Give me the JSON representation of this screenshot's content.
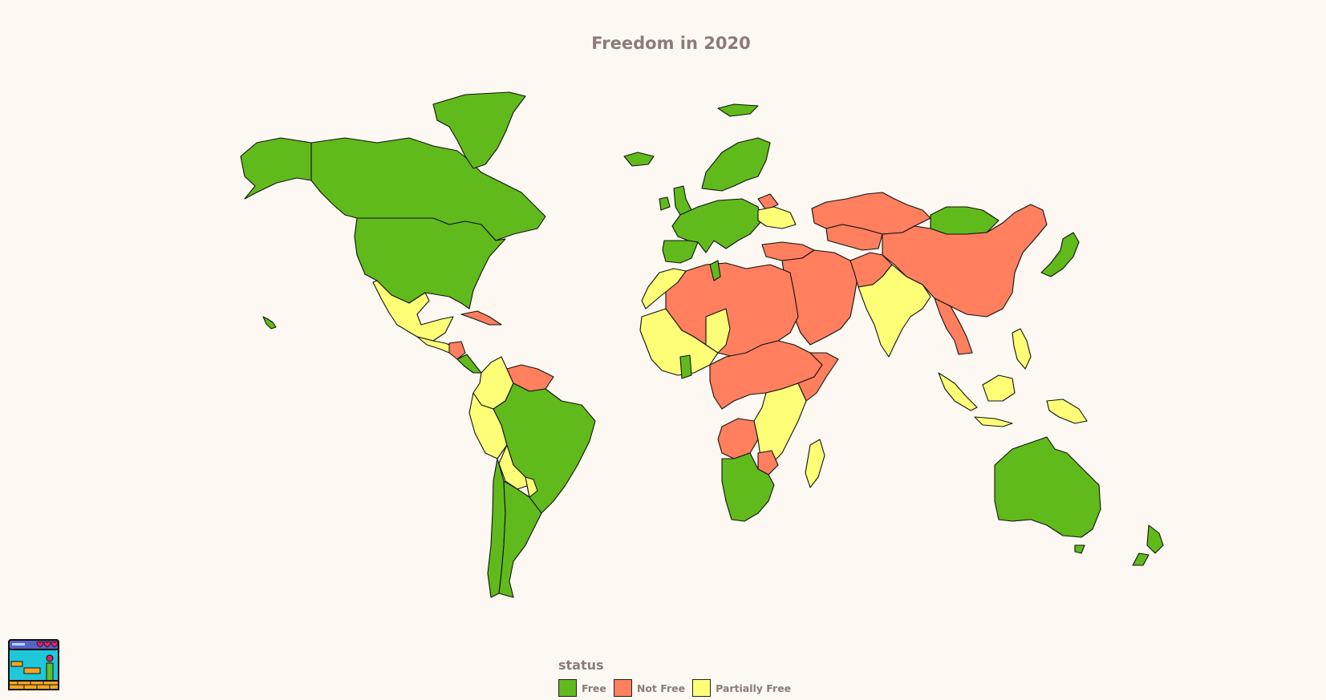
{
  "title": "Freedom in 2020",
  "legend": {
    "title": "status",
    "items": [
      {
        "label": "Free",
        "color": "#61ba1b"
      },
      {
        "label": "Not Free",
        "color": "#ff7f5e"
      },
      {
        "label": "Partially Free",
        "color": "#ffff77"
      }
    ]
  },
  "chart_data": {
    "type": "choropleth",
    "title": "Freedom in 2020",
    "legend_title": "status",
    "categories": [
      "Free",
      "Not Free",
      "Partially Free"
    ],
    "regions": [
      {
        "name": "Canada",
        "status": "Free"
      },
      {
        "name": "Greenland",
        "status": "Free"
      },
      {
        "name": "United States",
        "status": "Free"
      },
      {
        "name": "Mexico",
        "status": "Partially Free"
      },
      {
        "name": "Central America",
        "status": "Partially Free"
      },
      {
        "name": "Nicaragua",
        "status": "Not Free"
      },
      {
        "name": "Costa Rica",
        "status": "Free"
      },
      {
        "name": "Cuba",
        "status": "Not Free"
      },
      {
        "name": "Colombia",
        "status": "Partially Free"
      },
      {
        "name": "Venezuela",
        "status": "Not Free"
      },
      {
        "name": "Peru",
        "status": "Partially Free"
      },
      {
        "name": "Brazil",
        "status": "Free"
      },
      {
        "name": "Bolivia",
        "status": "Partially Free"
      },
      {
        "name": "Paraguay",
        "status": "Partially Free"
      },
      {
        "name": "Chile",
        "status": "Free"
      },
      {
        "name": "Argentina",
        "status": "Free"
      },
      {
        "name": "Uruguay",
        "status": "Free"
      },
      {
        "name": "Iceland",
        "status": "Free"
      },
      {
        "name": "Ireland",
        "status": "Free"
      },
      {
        "name": "United Kingdom",
        "status": "Free"
      },
      {
        "name": "Western Europe",
        "status": "Free"
      },
      {
        "name": "Iberia",
        "status": "Free"
      },
      {
        "name": "Scandinavia",
        "status": "Free"
      },
      {
        "name": "Belarus",
        "status": "Not Free"
      },
      {
        "name": "Ukraine",
        "status": "Partially Free"
      },
      {
        "name": "Turkey",
        "status": "Not Free"
      },
      {
        "name": "Russia",
        "status": "Not Free"
      },
      {
        "name": "Kazakhstan",
        "status": "Not Free"
      },
      {
        "name": "Mongolia",
        "status": "Free"
      },
      {
        "name": "China",
        "status": "Not Free"
      },
      {
        "name": "Japan",
        "status": "Free"
      },
      {
        "name": "Middle East",
        "status": "Not Free"
      },
      {
        "name": "Pakistan",
        "status": "Not Free"
      },
      {
        "name": "India",
        "status": "Partially Free"
      },
      {
        "name": "Myanmar",
        "status": "Not Free"
      },
      {
        "name": "Indonesia",
        "status": "Partially Free"
      },
      {
        "name": "Philippines",
        "status": "Partially Free"
      },
      {
        "name": "Papua New Guinea",
        "status": "Partially Free"
      },
      {
        "name": "Australia",
        "status": "Free"
      },
      {
        "name": "New Zealand",
        "status": "Free"
      },
      {
        "name": "North Africa",
        "status": "Not Free"
      },
      {
        "name": "Morocco",
        "status": "Partially Free"
      },
      {
        "name": "Tunisia",
        "status": "Free"
      },
      {
        "name": "West Africa",
        "status": "Partially Free"
      },
      {
        "name": "Ghana",
        "status": "Free"
      },
      {
        "name": "Central Africa",
        "status": "Not Free"
      },
      {
        "name": "Angola",
        "status": "Not Free"
      },
      {
        "name": "Southern Africa",
        "status": "Free"
      },
      {
        "name": "East Africa",
        "status": "Partially Free"
      },
      {
        "name": "Madagascar",
        "status": "Partially Free"
      }
    ]
  }
}
